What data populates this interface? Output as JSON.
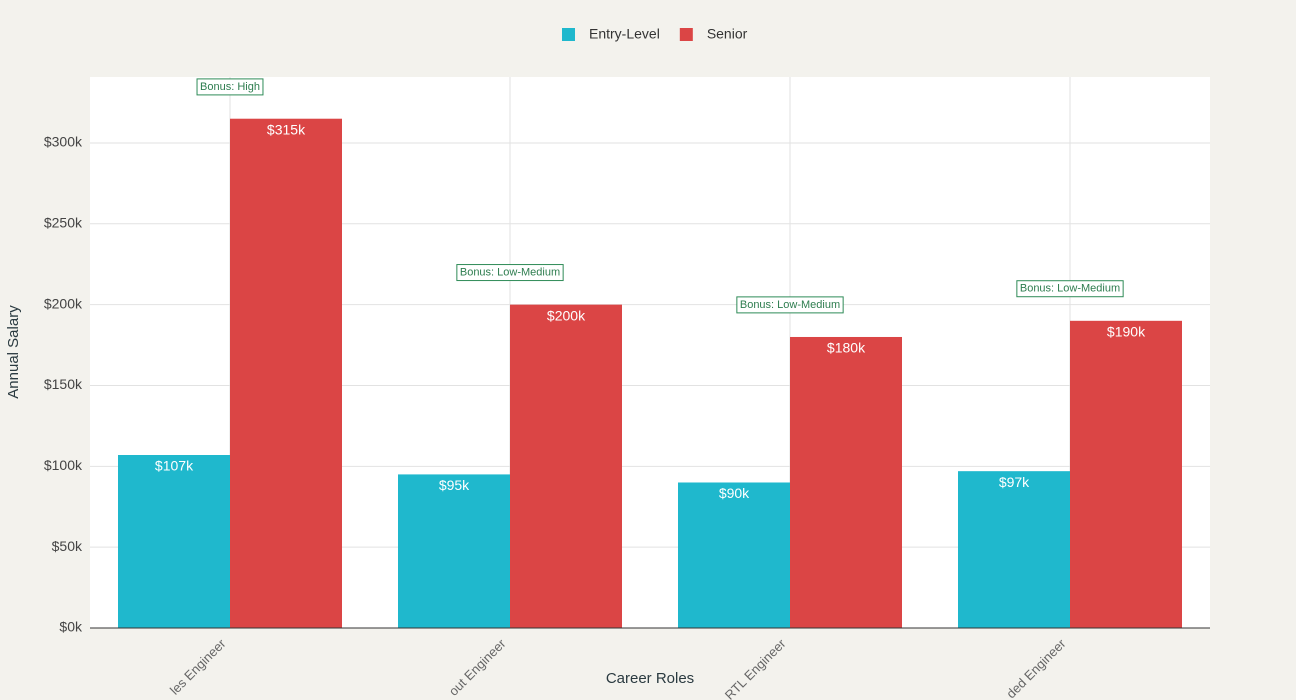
{
  "chart_data": {
    "type": "bar",
    "categories": [
      "les Engineer",
      "out Engineer",
      "RTL Engineer",
      "ded Engineer"
    ],
    "series": [
      {
        "name": "Entry-Level",
        "color": "#1fb8cd",
        "values": [
          107000,
          95000,
          90000,
          97000
        ],
        "value_labels": [
          "$107k",
          "$95k",
          "$90k",
          "$97k"
        ]
      },
      {
        "name": "Senior",
        "color": "#db4545",
        "values": [
          315000,
          200000,
          180000,
          190000
        ],
        "value_labels": [
          "$315k",
          "$200k",
          "$180k",
          "$190k"
        ]
      }
    ],
    "annotations": [
      "Bonus: High",
      "Bonus: Low-Medium",
      "Bonus: Low-Medium",
      "Bonus: Low-Medium"
    ],
    "x_label": "Career Roles",
    "y_label": "Annual Salary",
    "ylim": [
      0,
      340800
    ],
    "yticks": [
      {
        "value": 0,
        "label": "$0k"
      },
      {
        "value": 50000,
        "label": "$50k"
      },
      {
        "value": 100000,
        "label": "$100k"
      },
      {
        "value": 150000,
        "label": "$150k"
      },
      {
        "value": 200000,
        "label": "$200k"
      },
      {
        "value": 250000,
        "label": "$250k"
      },
      {
        "value": 300000,
        "label": "$300k"
      }
    ],
    "grid": true
  }
}
